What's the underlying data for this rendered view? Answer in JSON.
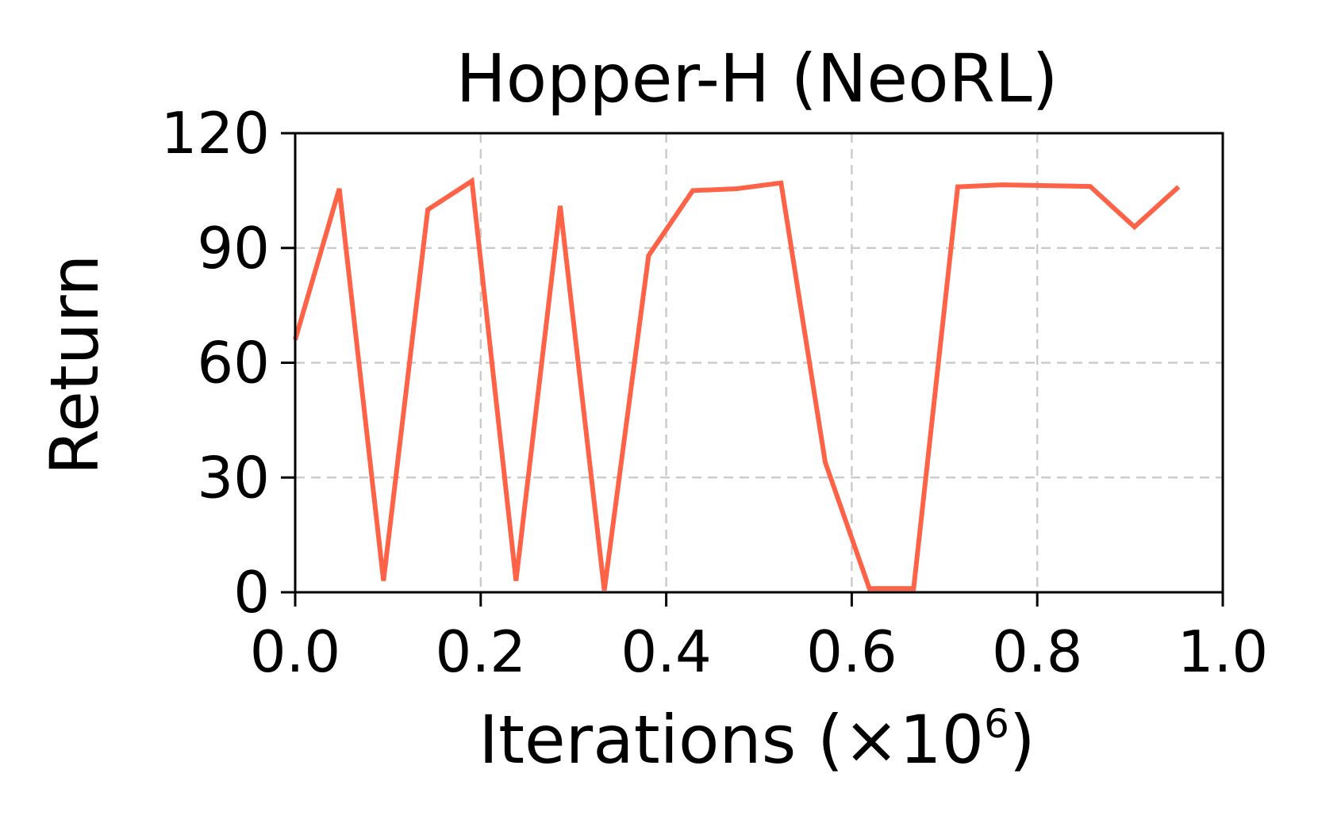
{
  "chart_data": {
    "type": "line",
    "title": "Hopper-H (NeoRL)",
    "xlabel": "Iterations (×10",
    "xlabel_sup": "6",
    "xlabel_close": ")",
    "ylabel": "Return",
    "xlim": [
      0.0,
      1.0
    ],
    "ylim": [
      0,
      120
    ],
    "xticks": [
      {
        "value": 0.0,
        "label": "0.0"
      },
      {
        "value": 0.2,
        "label": "0.2"
      },
      {
        "value": 0.4,
        "label": "0.4"
      },
      {
        "value": 0.6,
        "label": "0.6"
      },
      {
        "value": 0.8,
        "label": "0.8"
      },
      {
        "value": 1.0,
        "label": "1.0"
      }
    ],
    "yticks": [
      {
        "value": 0,
        "label": "0"
      },
      {
        "value": 30,
        "label": "30"
      },
      {
        "value": 60,
        "label": "60"
      },
      {
        "value": 90,
        "label": "90"
      },
      {
        "value": 120,
        "label": "120"
      }
    ],
    "grid": true,
    "series": [
      {
        "color": "#ff6347",
        "x": [
          0.0,
          0.0476,
          0.0952,
          0.1429,
          0.1905,
          0.2381,
          0.2857,
          0.3333,
          0.381,
          0.4286,
          0.4762,
          0.5238,
          0.5714,
          0.619,
          0.6667,
          0.7143,
          0.7619,
          0.8095,
          0.8571,
          0.9048,
          0.9524
        ],
        "y": [
          66,
          105.5,
          3,
          100,
          107.5,
          3,
          101,
          0.5,
          88,
          105,
          105.5,
          107,
          34,
          1,
          1,
          106,
          106.5,
          106.3,
          106.1,
          95.5,
          106
        ]
      }
    ]
  }
}
